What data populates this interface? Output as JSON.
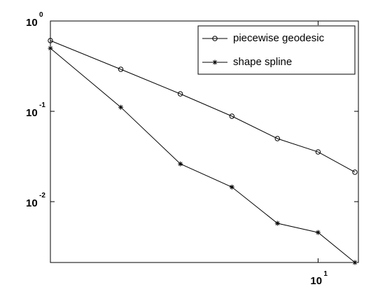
{
  "chart_data": {
    "type": "line",
    "xscale": "log",
    "yscale": "log",
    "x": [
      5,
      6,
      7,
      8,
      9,
      10,
      11
    ],
    "series": [
      {
        "name": "piecewise geodesic",
        "color": "#000000",
        "marker": "circle",
        "values": [
          0.607,
          0.292,
          0.156,
          0.0883,
          0.0499,
          0.0355,
          0.0212
        ]
      },
      {
        "name": "shape spline",
        "color": "#000000",
        "marker": "star",
        "values": [
          0.499,
          0.111,
          0.0262,
          0.0145,
          0.00576,
          0.00456,
          0.00212
        ]
      }
    ],
    "xlim": [
      5,
      11.1
    ],
    "ylim": [
      0.00212,
      1
    ],
    "xticks": [
      {
        "value": 10,
        "label": "10",
        "exponent": "1"
      }
    ],
    "yticks": [
      {
        "value": 1,
        "label": "10",
        "exponent": "0"
      },
      {
        "value": 0.1,
        "label": "10",
        "exponent": "-1"
      },
      {
        "value": 0.01,
        "label": "10",
        "exponent": "-2"
      }
    ],
    "legend": "upper right",
    "grid": false
  }
}
